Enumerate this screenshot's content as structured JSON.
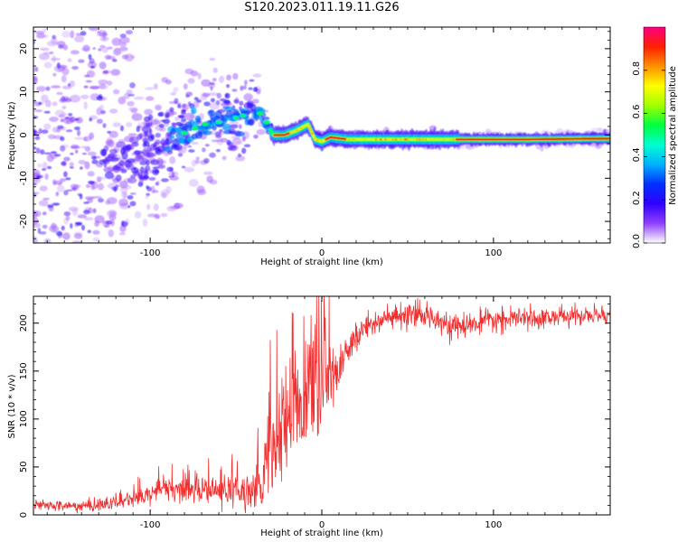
{
  "title": "S120.2023.011.19.11.G26",
  "chart_data": [
    {
      "type": "heatmap",
      "xlabel": "Height of straight line (km)",
      "ylabel": "Frequency (Hz)",
      "xlim": [
        -168,
        168
      ],
      "ylim": [
        -25,
        25
      ],
      "xticks": [
        -100,
        0,
        100
      ],
      "xtick_labels": [
        "-100",
        "0",
        "100"
      ],
      "yticks": [
        -20,
        -10,
        0,
        10,
        20
      ],
      "ytick_labels": [
        "-20",
        "-10",
        "0",
        "10",
        "20"
      ],
      "grid": false,
      "dominant_frequency_ridge": {
        "x": [
          -125,
          -110,
          -95,
          -85,
          -75,
          -65,
          -55,
          -45,
          -38,
          -32,
          -28,
          -22,
          -15,
          -8,
          -4,
          0,
          5,
          15,
          40,
          80,
          120,
          168
        ],
        "y": [
          -6,
          -6.5,
          -4,
          -1,
          1.5,
          3,
          3.5,
          4.5,
          5,
          2,
          0,
          0,
          1,
          2.5,
          -1,
          -1.5,
          -0.5,
          -1,
          -1,
          -1,
          -1,
          -0.8
        ]
      },
      "colorbar": {
        "label": "Normalized spectral amplitude",
        "range": [
          0,
          1
        ],
        "ticks": [
          0.0,
          0.2,
          0.4,
          0.6,
          0.8
        ],
        "tick_labels": [
          "0.0",
          "0.2",
          "0.4",
          "0.6",
          "0.8"
        ],
        "colormap": [
          "#ffffff",
          "#9040ff",
          "#3000ff",
          "#0030ff",
          "#00b0ff",
          "#00ffd0",
          "#00ff40",
          "#a0ff00",
          "#ffff00",
          "#ff9000",
          "#ff2000",
          "#ff0080"
        ]
      }
    },
    {
      "type": "line",
      "xlabel": "Height of straight line (km)",
      "ylabel": "SNR (10 * v/v)",
      "xlim": [
        -168,
        168
      ],
      "ylim": [
        0,
        228
      ],
      "xticks": [
        -100,
        0,
        100
      ],
      "xtick_labels": [
        "-100",
        "0",
        "100"
      ],
      "yticks": [
        0,
        50,
        100,
        150,
        200
      ],
      "ytick_labels": [
        "0",
        "50",
        "100",
        "150",
        "200"
      ],
      "grid": false,
      "line_color": "#f03030",
      "series_envelope": {
        "x": [
          -168,
          -140,
          -120,
          -105,
          -90,
          -75,
          -60,
          -45,
          -35,
          -28,
          -22,
          -15,
          -8,
          0,
          8,
          15,
          20,
          25,
          30,
          40,
          60,
          70,
          75,
          80,
          100,
          120,
          140,
          160,
          168
        ],
        "y": [
          10,
          9,
          12,
          20,
          28,
          26,
          25,
          22,
          40,
          70,
          95,
          110,
          125,
          140,
          145,
          168,
          185,
          195,
          202,
          205,
          208,
          205,
          195,
          196,
          203,
          205,
          207,
          208,
          210
        ]
      },
      "noise_amplitude": {
        "x": [
          -168,
          -110,
          -50,
          -38,
          -30,
          -5,
          10,
          25,
          168
        ],
        "y": [
          4,
          7,
          14,
          20,
          40,
          45,
          20,
          12,
          8
        ]
      }
    }
  ]
}
